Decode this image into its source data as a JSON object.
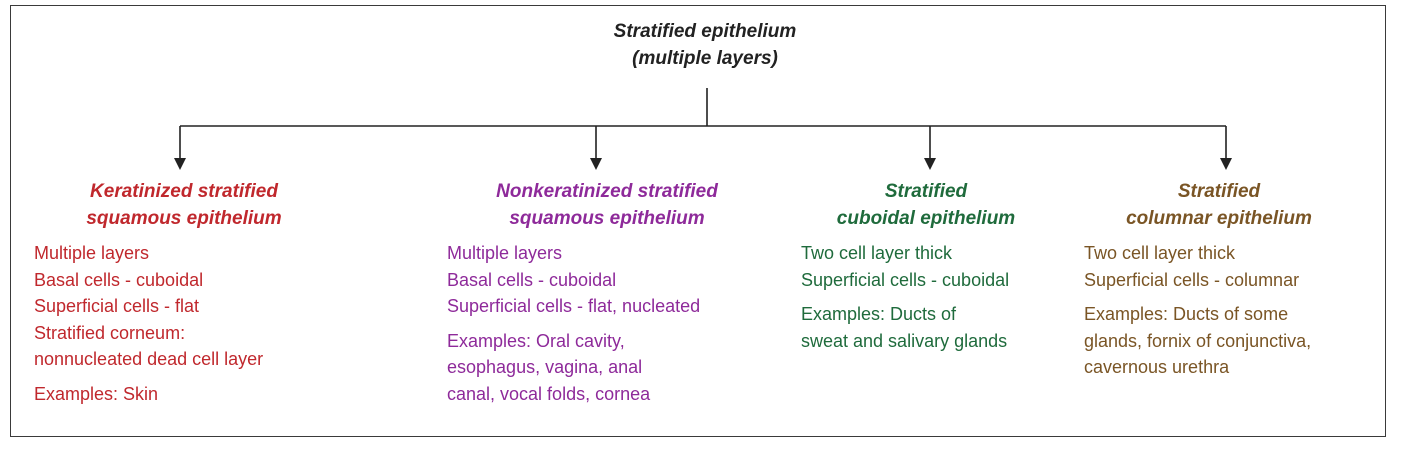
{
  "root": {
    "title_line1": "Stratified epithelium",
    "title_line2": "(multiple layers)"
  },
  "branches": [
    {
      "title_line1": "Keratinized stratified",
      "title_line2": "squamous epithelium",
      "color": "#c0282d",
      "features": [
        "Multiple layers",
        "Basal cells - cuboidal",
        "Superficial cells - flat",
        "Stratified corneum:",
        "nonnucleated dead cell layer"
      ],
      "examples": [
        "Examples: Skin"
      ]
    },
    {
      "title_line1": "Nonkeratinized stratified",
      "title_line2": "squamous epithelium",
      "color": "#8e2a9a",
      "features": [
        "Multiple layers",
        "Basal cells - cuboidal",
        "Superficial cells - flat, nucleated"
      ],
      "examples": [
        "Examples: Oral cavity,",
        "esophagus, vagina, anal",
        "canal, vocal folds, cornea"
      ]
    },
    {
      "title_line1": "Stratified",
      "title_line2": "cuboidal epithelium",
      "color": "#1f6b3c",
      "features": [
        "Two cell layer thick",
        "Superficial cells - cuboidal"
      ],
      "examples": [
        "Examples: Ducts of",
        "sweat and salivary glands"
      ]
    },
    {
      "title_line1": "Stratified",
      "title_line2": "columnar epithelium",
      "color": "#7a5525",
      "features": [
        "Two cell layer thick",
        "Superficial cells - columnar"
      ],
      "examples": [
        "Examples: Ducts of some",
        "glands, fornix of conjunctiva,",
        "cavernous urethra"
      ]
    }
  ]
}
